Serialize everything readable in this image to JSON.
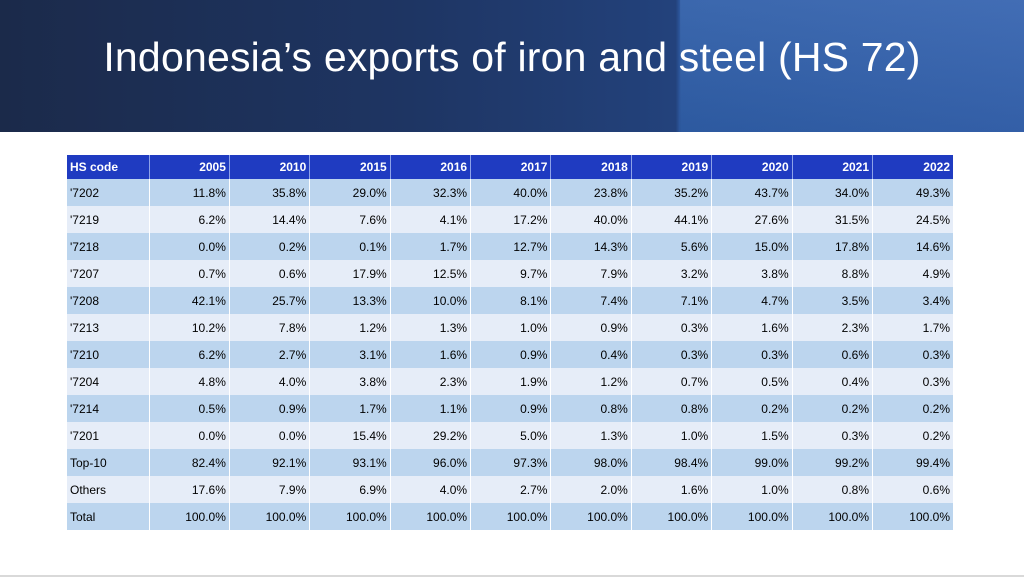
{
  "slide": {
    "title": "Indonesia’s exports of iron and steel (HS 72)"
  },
  "table": {
    "headers": [
      "HS code",
      "2005",
      "2010",
      "2015",
      "2016",
      "2017",
      "2018",
      "2019",
      "2020",
      "2021",
      "2022"
    ],
    "rows": [
      [
        "'7202",
        "11.8%",
        "35.8%",
        "29.0%",
        "32.3%",
        "40.0%",
        "23.8%",
        "35.2%",
        "43.7%",
        "34.0%",
        "49.3%"
      ],
      [
        "'7219",
        "6.2%",
        "14.4%",
        "7.6%",
        "4.1%",
        "17.2%",
        "40.0%",
        "44.1%",
        "27.6%",
        "31.5%",
        "24.5%"
      ],
      [
        "'7218",
        "0.0%",
        "0.2%",
        "0.1%",
        "1.7%",
        "12.7%",
        "14.3%",
        "5.6%",
        "15.0%",
        "17.8%",
        "14.6%"
      ],
      [
        "'7207",
        "0.7%",
        "0.6%",
        "17.9%",
        "12.5%",
        "9.7%",
        "7.9%",
        "3.2%",
        "3.8%",
        "8.8%",
        "4.9%"
      ],
      [
        "'7208",
        "42.1%",
        "25.7%",
        "13.3%",
        "10.0%",
        "8.1%",
        "7.4%",
        "7.1%",
        "4.7%",
        "3.5%",
        "3.4%"
      ],
      [
        "'7213",
        "10.2%",
        "7.8%",
        "1.2%",
        "1.3%",
        "1.0%",
        "0.9%",
        "0.3%",
        "1.6%",
        "2.3%",
        "1.7%"
      ],
      [
        "'7210",
        "6.2%",
        "2.7%",
        "3.1%",
        "1.6%",
        "0.9%",
        "0.4%",
        "0.3%",
        "0.3%",
        "0.6%",
        "0.3%"
      ],
      [
        "'7204",
        "4.8%",
        "4.0%",
        "3.8%",
        "2.3%",
        "1.9%",
        "1.2%",
        "0.7%",
        "0.5%",
        "0.4%",
        "0.3%"
      ],
      [
        "'7214",
        "0.5%",
        "0.9%",
        "1.7%",
        "1.1%",
        "0.9%",
        "0.8%",
        "0.8%",
        "0.2%",
        "0.2%",
        "0.2%"
      ],
      [
        "'7201",
        "0.0%",
        "0.0%",
        "15.4%",
        "29.2%",
        "5.0%",
        "1.3%",
        "1.0%",
        "1.5%",
        "0.3%",
        "0.2%"
      ],
      [
        "Top-10",
        "82.4%",
        "92.1%",
        "93.1%",
        "96.0%",
        "97.3%",
        "98.0%",
        "98.4%",
        "99.0%",
        "99.2%",
        "99.4%"
      ],
      [
        "Others",
        "17.6%",
        "7.9%",
        "6.9%",
        "4.0%",
        "2.7%",
        "2.0%",
        "1.6%",
        "1.0%",
        "0.8%",
        "0.6%"
      ],
      [
        "Total",
        "100.0%",
        "100.0%",
        "100.0%",
        "100.0%",
        "100.0%",
        "100.0%",
        "100.0%",
        "100.0%",
        "100.0%",
        "100.0%"
      ]
    ]
  },
  "colors": {
    "header_bg": "#1f3bc1",
    "row_odd_bg": "#bcd5ee",
    "row_even_bg": "#e6edf8",
    "banner_dark": "#1b2a4a",
    "banner_light": "#3664b0"
  }
}
